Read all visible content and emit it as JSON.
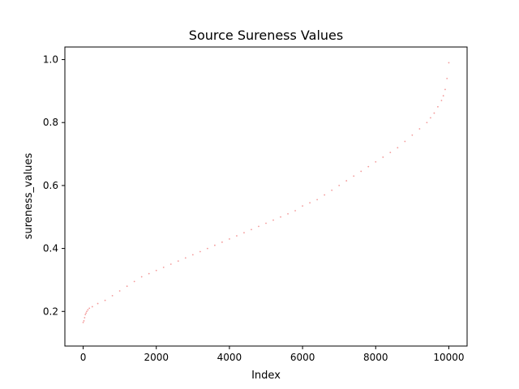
{
  "chart_data": {
    "type": "scatter",
    "title": "Source Sureness Values",
    "xlabel": "Index",
    "ylabel": "sureness_values",
    "xlim": [
      -500,
      10500
    ],
    "ylim": [
      0.09,
      1.04
    ],
    "x_ticks": [
      0,
      2000,
      4000,
      6000,
      8000,
      10000
    ],
    "y_ticks": [
      0.2,
      0.4,
      0.6,
      0.8,
      1.0
    ],
    "x_tick_labels": [
      "0",
      "2000",
      "4000",
      "6000",
      "8000",
      "10000"
    ],
    "y_tick_labels": [
      "0.2",
      "0.4",
      "0.6",
      "0.8",
      "1.0"
    ],
    "grid": false,
    "marker_color": "#f08080",
    "series": [
      {
        "x": [
          0,
          20,
          40,
          60,
          80,
          100,
          130,
          170,
          250,
          400,
          600,
          800,
          1000,
          1200,
          1400,
          1600,
          1800,
          2000,
          2200,
          2400,
          2600,
          2800,
          3000,
          3200,
          3400,
          3600,
          3800,
          4000,
          4200,
          4400,
          4600,
          4800,
          5000,
          5200,
          5400,
          5600,
          5800,
          6000,
          6200,
          6400,
          6600,
          6800,
          7000,
          7200,
          7400,
          7600,
          7800,
          8000,
          8200,
          8400,
          8600,
          8800,
          9000,
          9200,
          9400,
          9500,
          9600,
          9700,
          9800,
          9850,
          9900,
          9950,
          10000
        ],
        "values": [
          0.165,
          0.17,
          0.18,
          0.19,
          0.195,
          0.2,
          0.205,
          0.21,
          0.215,
          0.225,
          0.235,
          0.25,
          0.265,
          0.28,
          0.295,
          0.31,
          0.32,
          0.33,
          0.34,
          0.35,
          0.36,
          0.37,
          0.38,
          0.39,
          0.4,
          0.41,
          0.42,
          0.43,
          0.44,
          0.45,
          0.46,
          0.47,
          0.48,
          0.49,
          0.5,
          0.51,
          0.52,
          0.535,
          0.545,
          0.555,
          0.57,
          0.585,
          0.6,
          0.615,
          0.63,
          0.645,
          0.66,
          0.675,
          0.69,
          0.705,
          0.72,
          0.74,
          0.76,
          0.78,
          0.8,
          0.815,
          0.83,
          0.85,
          0.87,
          0.885,
          0.905,
          0.94,
          0.99
        ]
      }
    ]
  }
}
